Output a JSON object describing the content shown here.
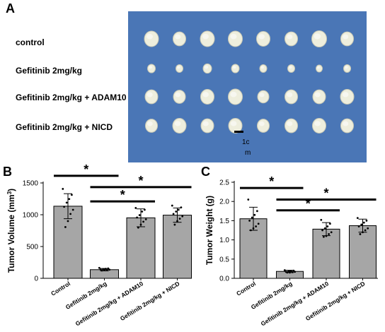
{
  "panel_a": {
    "letter": "A",
    "groups": [
      {
        "label": "control",
        "tumors": [
          [
            1,
            1.0
          ],
          [
            1,
            0.9
          ],
          [
            1,
            1.0
          ],
          [
            1,
            1.0
          ],
          [
            1,
            0.95
          ],
          [
            1,
            0.9
          ],
          [
            1,
            1.05
          ],
          [
            1,
            0.9
          ]
        ]
      },
      {
        "label": "Gefitinib 2mg/kg",
        "tumors": [
          [
            1,
            0.55
          ],
          [
            1,
            0.5
          ],
          [
            1,
            0.6
          ],
          [
            1,
            0.55
          ],
          [
            1,
            0.5
          ],
          [
            1,
            0.5
          ],
          [
            1,
            0.45
          ],
          [
            1,
            0.5
          ]
        ]
      },
      {
        "label": "Gefitinib 2mg/kg + ADAM10",
        "tumors": [
          [
            1,
            0.9
          ],
          [
            1,
            0.85
          ],
          [
            1,
            0.95
          ],
          [
            1,
            1.0
          ],
          [
            1,
            0.8
          ],
          [
            1,
            0.9
          ],
          [
            1,
            0.9
          ],
          [
            1,
            0.95
          ]
        ]
      },
      {
        "label": "Gefitinib 2mg/kg + NICD",
        "tumors": [
          [
            1,
            0.85
          ],
          [
            1,
            0.95
          ],
          [
            1,
            0.9
          ],
          [
            1,
            0.95
          ],
          [
            1,
            0.85
          ],
          [
            1,
            0.9
          ],
          [
            1,
            0.95
          ],
          [
            1,
            0.9
          ]
        ]
      }
    ],
    "scale_bar_label_1": "1c",
    "scale_bar_label_2": "m",
    "background_color": "#4a76b6",
    "tumor_color": "#eeeedd"
  },
  "chart_data": [
    {
      "panel": "B",
      "type": "bar",
      "ylabel": "Tumor Volume (mm³)",
      "ylabel_main": "Tumor Volume (mm",
      "ylabel_sup": "3",
      "ylabel_end": ")",
      "ylim": [
        0,
        1600
      ],
      "yticks": [
        "0",
        "500",
        "1000",
        "1500"
      ],
      "categories": [
        "Control",
        "Gefitinib 2mg/kg",
        "Gefitinib 2mg/kg + ADAM10",
        "Gefitinib 2mg/kg + NICD"
      ],
      "values": [
        1210,
        145,
        1015,
        1060
      ],
      "errors": [
        210,
        20,
        150,
        120
      ],
      "points": [
        [
          1500,
          1400,
          1330,
          1270,
          1200,
          1150,
          1080,
          960,
          860
        ],
        [
          175,
          165,
          160,
          155,
          150,
          145,
          140,
          135,
          130
        ],
        [
          1180,
          1150,
          1120,
          1060,
          1020,
          990,
          950,
          900,
          850
        ],
        [
          1220,
          1190,
          1150,
          1120,
          1080,
          1040,
          1000,
          960,
          900
        ]
      ],
      "significance": [
        {
          "from": 0,
          "to": 1,
          "y": 1720,
          "label": "*"
        },
        {
          "from": 1,
          "to": 3,
          "y": 1530,
          "label": "*"
        },
        {
          "from": 1,
          "to": 2,
          "y": 1290,
          "label": "*"
        }
      ],
      "bar_color": "#a6a6a6"
    },
    {
      "panel": "C",
      "type": "bar",
      "ylabel": "Tumor Weight (g)",
      "ylim": [
        0,
        2.5
      ],
      "yticks": [
        "0.0",
        "0.5",
        "1.0",
        "1.5",
        "2.0",
        "2.5"
      ],
      "categories": [
        "Control",
        "Gefitinib 2mg/kg",
        "Gefitinib 2mg/kg + ADAM10",
        "Gefitinib 2mg/kg + NICD"
      ],
      "values": [
        1.55,
        0.18,
        1.28,
        1.37
      ],
      "errors": [
        0.3,
        0.03,
        0.17,
        0.17
      ],
      "points": [
        [
          2.05,
          1.75,
          1.65,
          1.58,
          1.5,
          1.42,
          1.35,
          1.3,
          1.25
        ],
        [
          0.21,
          0.2,
          0.19,
          0.18,
          0.17,
          0.17,
          0.16,
          0.15,
          0.15
        ],
        [
          1.52,
          1.42,
          1.35,
          1.3,
          1.25,
          1.2,
          1.15,
          1.1,
          1.08
        ],
        [
          1.57,
          1.5,
          1.45,
          1.4,
          1.35,
          1.3,
          1.25,
          1.2,
          1.15
        ]
      ],
      "significance": [
        {
          "from": 0,
          "to": 1,
          "y": 2.35,
          "label": "*"
        },
        {
          "from": 1,
          "to": 3,
          "y": 2.05,
          "label": "*"
        },
        {
          "from": 1,
          "to": 2,
          "y": 1.77,
          "label": "*"
        }
      ],
      "bar_color": "#a6a6a6"
    }
  ]
}
